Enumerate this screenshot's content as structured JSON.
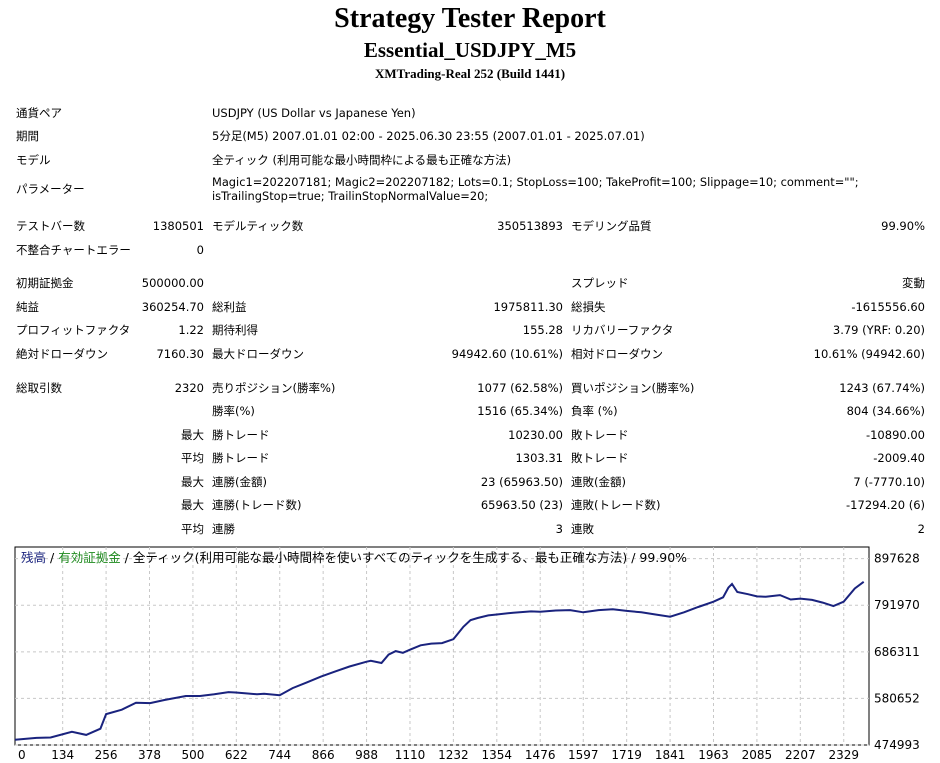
{
  "header": {
    "title": "Strategy Tester Report",
    "subtitle": "Essential_USDJPY_M5",
    "server": "XMTrading-Real 252 (Build 1441)"
  },
  "info": {
    "pair_label": "通貨ペア",
    "pair_value": "USDJPY (US Dollar vs Japanese Yen)",
    "period_label": "期間",
    "period_value": "5分足(M5) 2007.01.01 02:00 - 2025.06.30 23:55 (2007.01.01 - 2025.07.01)",
    "model_label": "モデル",
    "model_value": "全ティック (利用可能な最小時間枠による最も正確な方法)",
    "params_label": "パラメーター",
    "params_value": "Magic1=202207181; Magic2=202207182; Lots=0.1; StopLoss=100; TakeProfit=100; Slippage=10; comment=\"\"; isTrailingStop=true; TrailinStopNormalValue=20;"
  },
  "stats": {
    "bars_label": "テストバー数",
    "bars_value": "1380501",
    "ticks_label": "モデルティック数",
    "ticks_value": "350513893",
    "quality_label": "モデリング品質",
    "quality_value": "99.90%",
    "mismatch_label": "不整合チャートエラー",
    "mismatch_value": "0",
    "deposit_label": "初期証拠金",
    "deposit_value": "500000.00",
    "spread_label": "スプレッド",
    "spread_value": "変動",
    "netprofit_label": "純益",
    "netprofit_value": "360254.70",
    "grossprofit_label": "総利益",
    "grossprofit_value": "1975811.30",
    "grossloss_label": "総損失",
    "grossloss_value": "-1615556.60",
    "pf_label": "プロフィットファクタ",
    "pf_value": "1.22",
    "expected_label": "期待利得",
    "expected_value": "155.28",
    "recovery_label": "リカバリーファクタ",
    "recovery_value": "3.79 (YRF: 0.20)",
    "absdd_label": "絶対ドローダウン",
    "absdd_value": "7160.30",
    "maxdd_label": "最大ドローダウン",
    "maxdd_value": "94942.60 (10.61%)",
    "reldd_label": "相対ドローダウン",
    "reldd_value": "10.61% (94942.60)",
    "total_label": "総取引数",
    "total_value": "2320",
    "short_label": "売りポジション(勝率%)",
    "short_value": "1077 (62.58%)",
    "long_label": "買いポジション(勝率%)",
    "long_value": "1243 (67.74%)",
    "winrate_label": "勝率(%)",
    "winrate_value": "1516 (65.34%)",
    "lossrate_label": "負率 (%)",
    "lossrate_value": "804 (34.66%)",
    "max_label": "最大",
    "avg_label": "平均",
    "maxwin_label": "勝トレード",
    "maxwin_value": "10230.00",
    "maxloss_label": "敗トレード",
    "maxloss_value": "-10890.00",
    "avgwin_label": "勝トレード",
    "avgwin_value": "1303.31",
    "avgloss_label": "敗トレード",
    "avgloss_value": "-2009.40",
    "maxconswin_label": "連勝(金額)",
    "maxconswin_value": "23 (65963.50)",
    "maxconsloss_label": "連敗(金額)",
    "maxconsloss_value": "7 (-7770.10)",
    "maxconsprofit_label": "連勝(トレード数)",
    "maxconsprofit_value": "65963.50 (23)",
    "maxconsdd_label": "連敗(トレード数)",
    "maxconsdd_value": "-17294.20 (6)",
    "avgconswin_label": "連勝",
    "avgconswin_value": "3",
    "avgconsloss_label": "連敗",
    "avgconsloss_value": "2"
  },
  "chart_legend": {
    "balance": "残高",
    "sep1": " / ",
    "equity": "有効証拠金",
    "rest": " / 全ティック(利用可能な最小時間枠を使いすべてのティックを生成する、最も正確な方法) / 99.90%"
  },
  "colors": {
    "line": "#1a237e",
    "balance_text": "#1a237e",
    "equity_text": "#1f8a1f",
    "grid": "#c8c8c8"
  },
  "chart_data": {
    "type": "line",
    "x_ticks": [
      "0",
      "134",
      "256",
      "378",
      "500",
      "622",
      "744",
      "866",
      "988",
      "1110",
      "1232",
      "1354",
      "1476",
      "1597",
      "1719",
      "1841",
      "1963",
      "2085",
      "2207",
      "2329"
    ],
    "y_ticks": [
      "897628",
      "791970",
      "686311",
      "580652",
      "474993"
    ],
    "xlim": [
      0,
      2400
    ],
    "ylim": [
      474993,
      924000
    ],
    "series": [
      {
        "name": "残高",
        "x": [
          0,
          60,
          100,
          160,
          200,
          240,
          256,
          300,
          340,
          380,
          420,
          480,
          520,
          560,
          600,
          620,
          650,
          680,
          700,
          744,
          780,
          820,
          860,
          900,
          940,
          988,
          1000,
          1030,
          1050,
          1070,
          1090,
          1110,
          1140,
          1170,
          1200,
          1232,
          1260,
          1280,
          1300,
          1330,
          1354,
          1400,
          1450,
          1476,
          1520,
          1560,
          1597,
          1640,
          1680,
          1719,
          1760,
          1800,
          1841,
          1880,
          1920,
          1963,
          1990,
          2005,
          2015,
          2030,
          2060,
          2085,
          2110,
          2150,
          2180,
          2207,
          2240,
          2270,
          2300,
          2329,
          2360,
          2385
        ],
        "y": [
          487000,
          491000,
          492000,
          505000,
          498000,
          512000,
          545000,
          555000,
          571000,
          570000,
          577000,
          586000,
          586000,
          590000,
          595000,
          594000,
          592000,
          590000,
          591000,
          588000,
          604000,
          617000,
          630000,
          642000,
          653000,
          664000,
          666000,
          661000,
          680000,
          688000,
          684000,
          691000,
          701000,
          705000,
          706000,
          715000,
          743000,
          758000,
          763000,
          769000,
          771000,
          775000,
          778000,
          777000,
          780000,
          781000,
          776000,
          781000,
          783000,
          779000,
          776000,
          771000,
          766000,
          776000,
          788000,
          800000,
          810000,
          832000,
          840000,
          822000,
          817000,
          812000,
          811000,
          815000,
          805000,
          807000,
          804000,
          798000,
          790000,
          800000,
          830000,
          845000
        ]
      }
    ]
  }
}
